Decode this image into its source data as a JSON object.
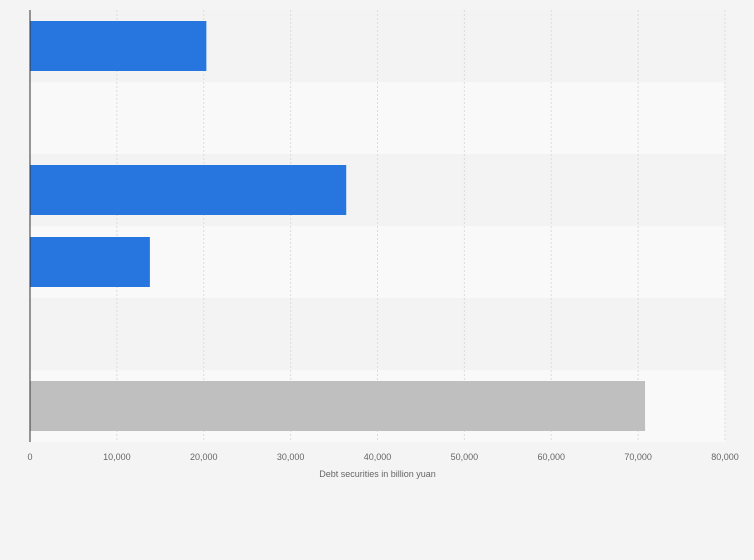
{
  "chart_data": {
    "type": "bar",
    "orientation": "horizontal",
    "categories": [
      "",
      "",
      "",
      "",
      "",
      ""
    ],
    "values": [
      20300,
      null,
      36400,
      13800,
      null,
      70800
    ],
    "bar_colors": [
      "#2775de",
      "#2775de",
      "#2775de",
      "#2775de",
      "#2775de",
      "#bfbfbf"
    ],
    "title": "",
    "xlabel": "Debt securities in billion yuan",
    "ylabel": "",
    "xlim": [
      0,
      80000
    ],
    "xticks": [
      0,
      10000,
      20000,
      30000,
      40000,
      50000,
      60000,
      70000,
      80000
    ],
    "xtick_labels": [
      "0",
      "10,000",
      "20,000",
      "30,000",
      "40,000",
      "50,000",
      "60,000",
      "70,000",
      "80,000"
    ],
    "grid": true,
    "legend": "none"
  },
  "colors": {
    "background": "#f4f4f4",
    "band_light": "#f9f9f9",
    "band_dark": "#f3f3f3",
    "grid": "#dcdcdc",
    "axis": "#333333"
  }
}
